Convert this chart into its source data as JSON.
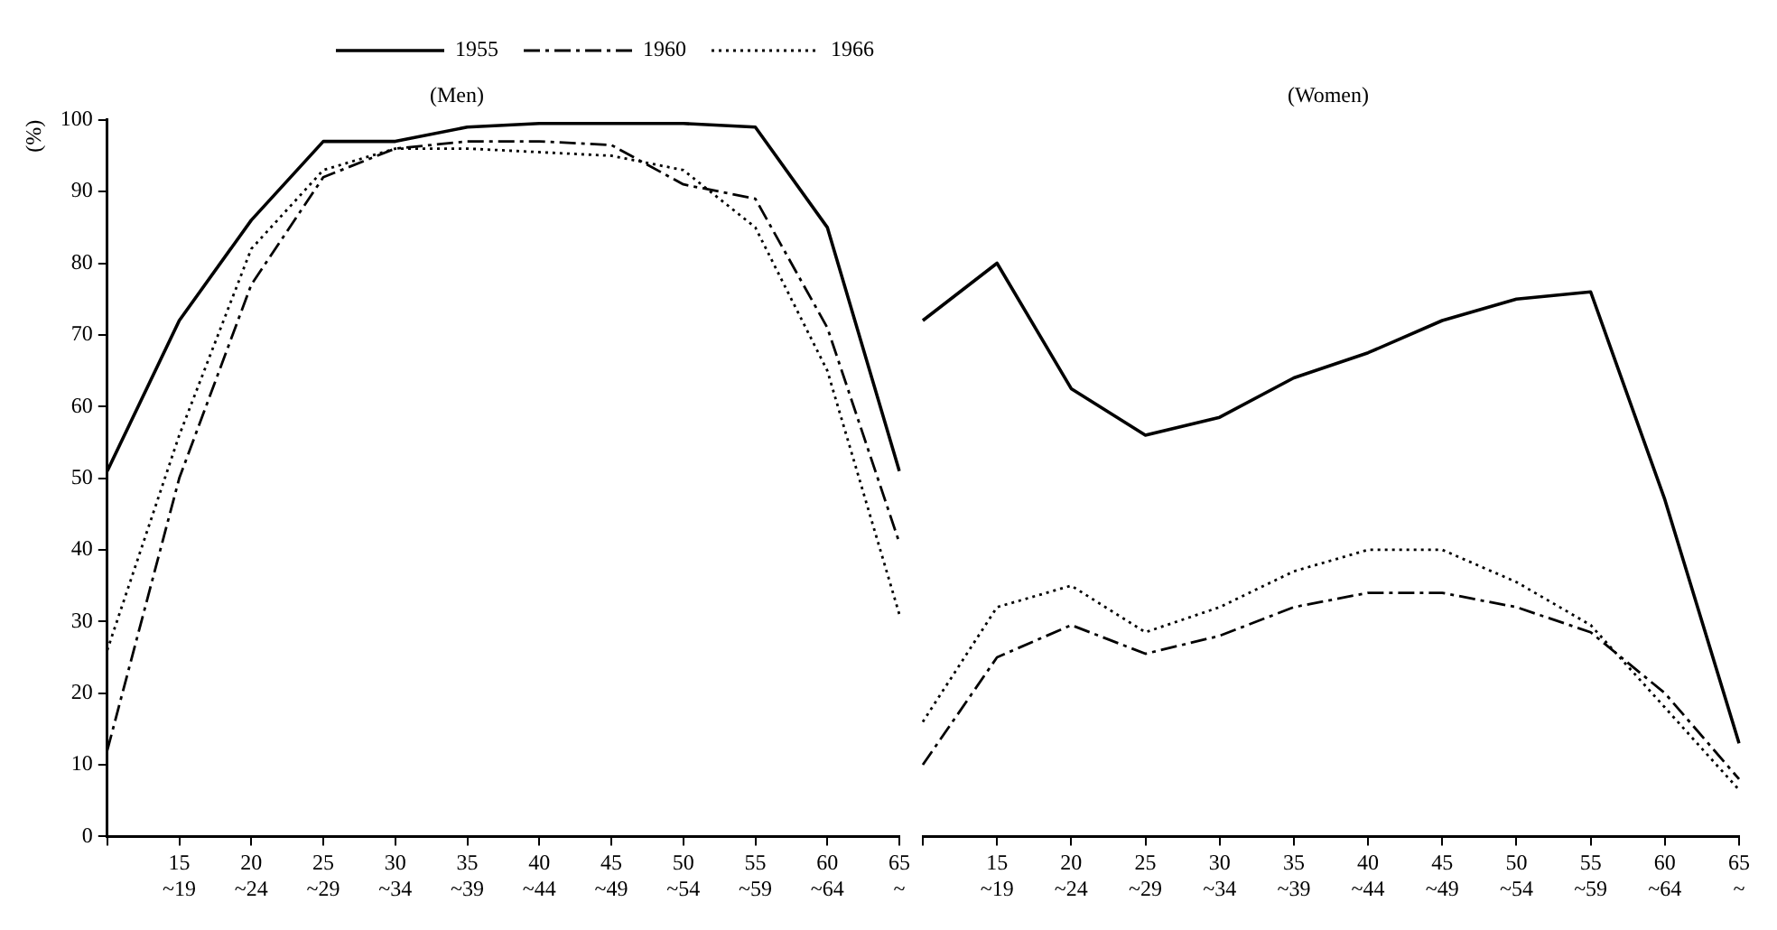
{
  "chart_data": [
    {
      "type": "line",
      "title": "(Men)",
      "ylabel": "(%)",
      "categories": [
        null,
        "15~19",
        "20~24",
        "25~29",
        "30~34",
        "35~39",
        "40~44",
        "45~49",
        "50~54",
        "55~59",
        "60~64",
        "65~"
      ],
      "ylim": [
        0,
        100
      ],
      "yticks": [
        0,
        10,
        20,
        30,
        40,
        50,
        60,
        70,
        80,
        90,
        100
      ],
      "grid": false,
      "legend": "top",
      "marker": "none",
      "series": [
        {
          "name": "1955",
          "color": "#000000",
          "line_style": "solid",
          "values": [
            51,
            72,
            86,
            97,
            97,
            99,
            99.5,
            99.5,
            99.5,
            99,
            85,
            51
          ]
        },
        {
          "name": "1960",
          "color": "#000000",
          "line_style": "dashed",
          "values": [
            12,
            50,
            77,
            92,
            96,
            97,
            97,
            96.5,
            91,
            89,
            71,
            41
          ]
        },
        {
          "name": "1966",
          "color": "#000000",
          "line_style": "dotted",
          "values": [
            26,
            56,
            82,
            93,
            96,
            96,
            95.5,
            95,
            93,
            85,
            65,
            31
          ]
        }
      ]
    },
    {
      "type": "line",
      "title": "(Women)",
      "categories": [
        null,
        "15~19",
        "20~24",
        "25~29",
        "30~34",
        "35~39",
        "40~44",
        "45~49",
        "50~54",
        "55~59",
        "60~64",
        "65~"
      ],
      "ylim": [
        0,
        100
      ],
      "yticks": [
        0,
        10,
        20,
        30,
        40,
        50,
        60,
        70,
        80,
        90,
        100
      ],
      "tick_labels": "x",
      "grid": false,
      "marker": "none",
      "series": [
        {
          "name": "1955",
          "color": "#000000",
          "line_style": "solid",
          "values": [
            72,
            80,
            62.5,
            56,
            58.5,
            64,
            67.5,
            72,
            75,
            76,
            47,
            13
          ]
        },
        {
          "name": "1960",
          "color": "#000000",
          "line_style": "dashed",
          "values": [
            10,
            25,
            29.5,
            25.5,
            28,
            32,
            34,
            34,
            32,
            28.5,
            20,
            8
          ]
        },
        {
          "name": "1966",
          "color": "#000000",
          "line_style": "dotted",
          "values": [
            16,
            32,
            35,
            28.5,
            32,
            37,
            40,
            40,
            35.5,
            29.5,
            18,
            6.5
          ]
        }
      ]
    }
  ]
}
